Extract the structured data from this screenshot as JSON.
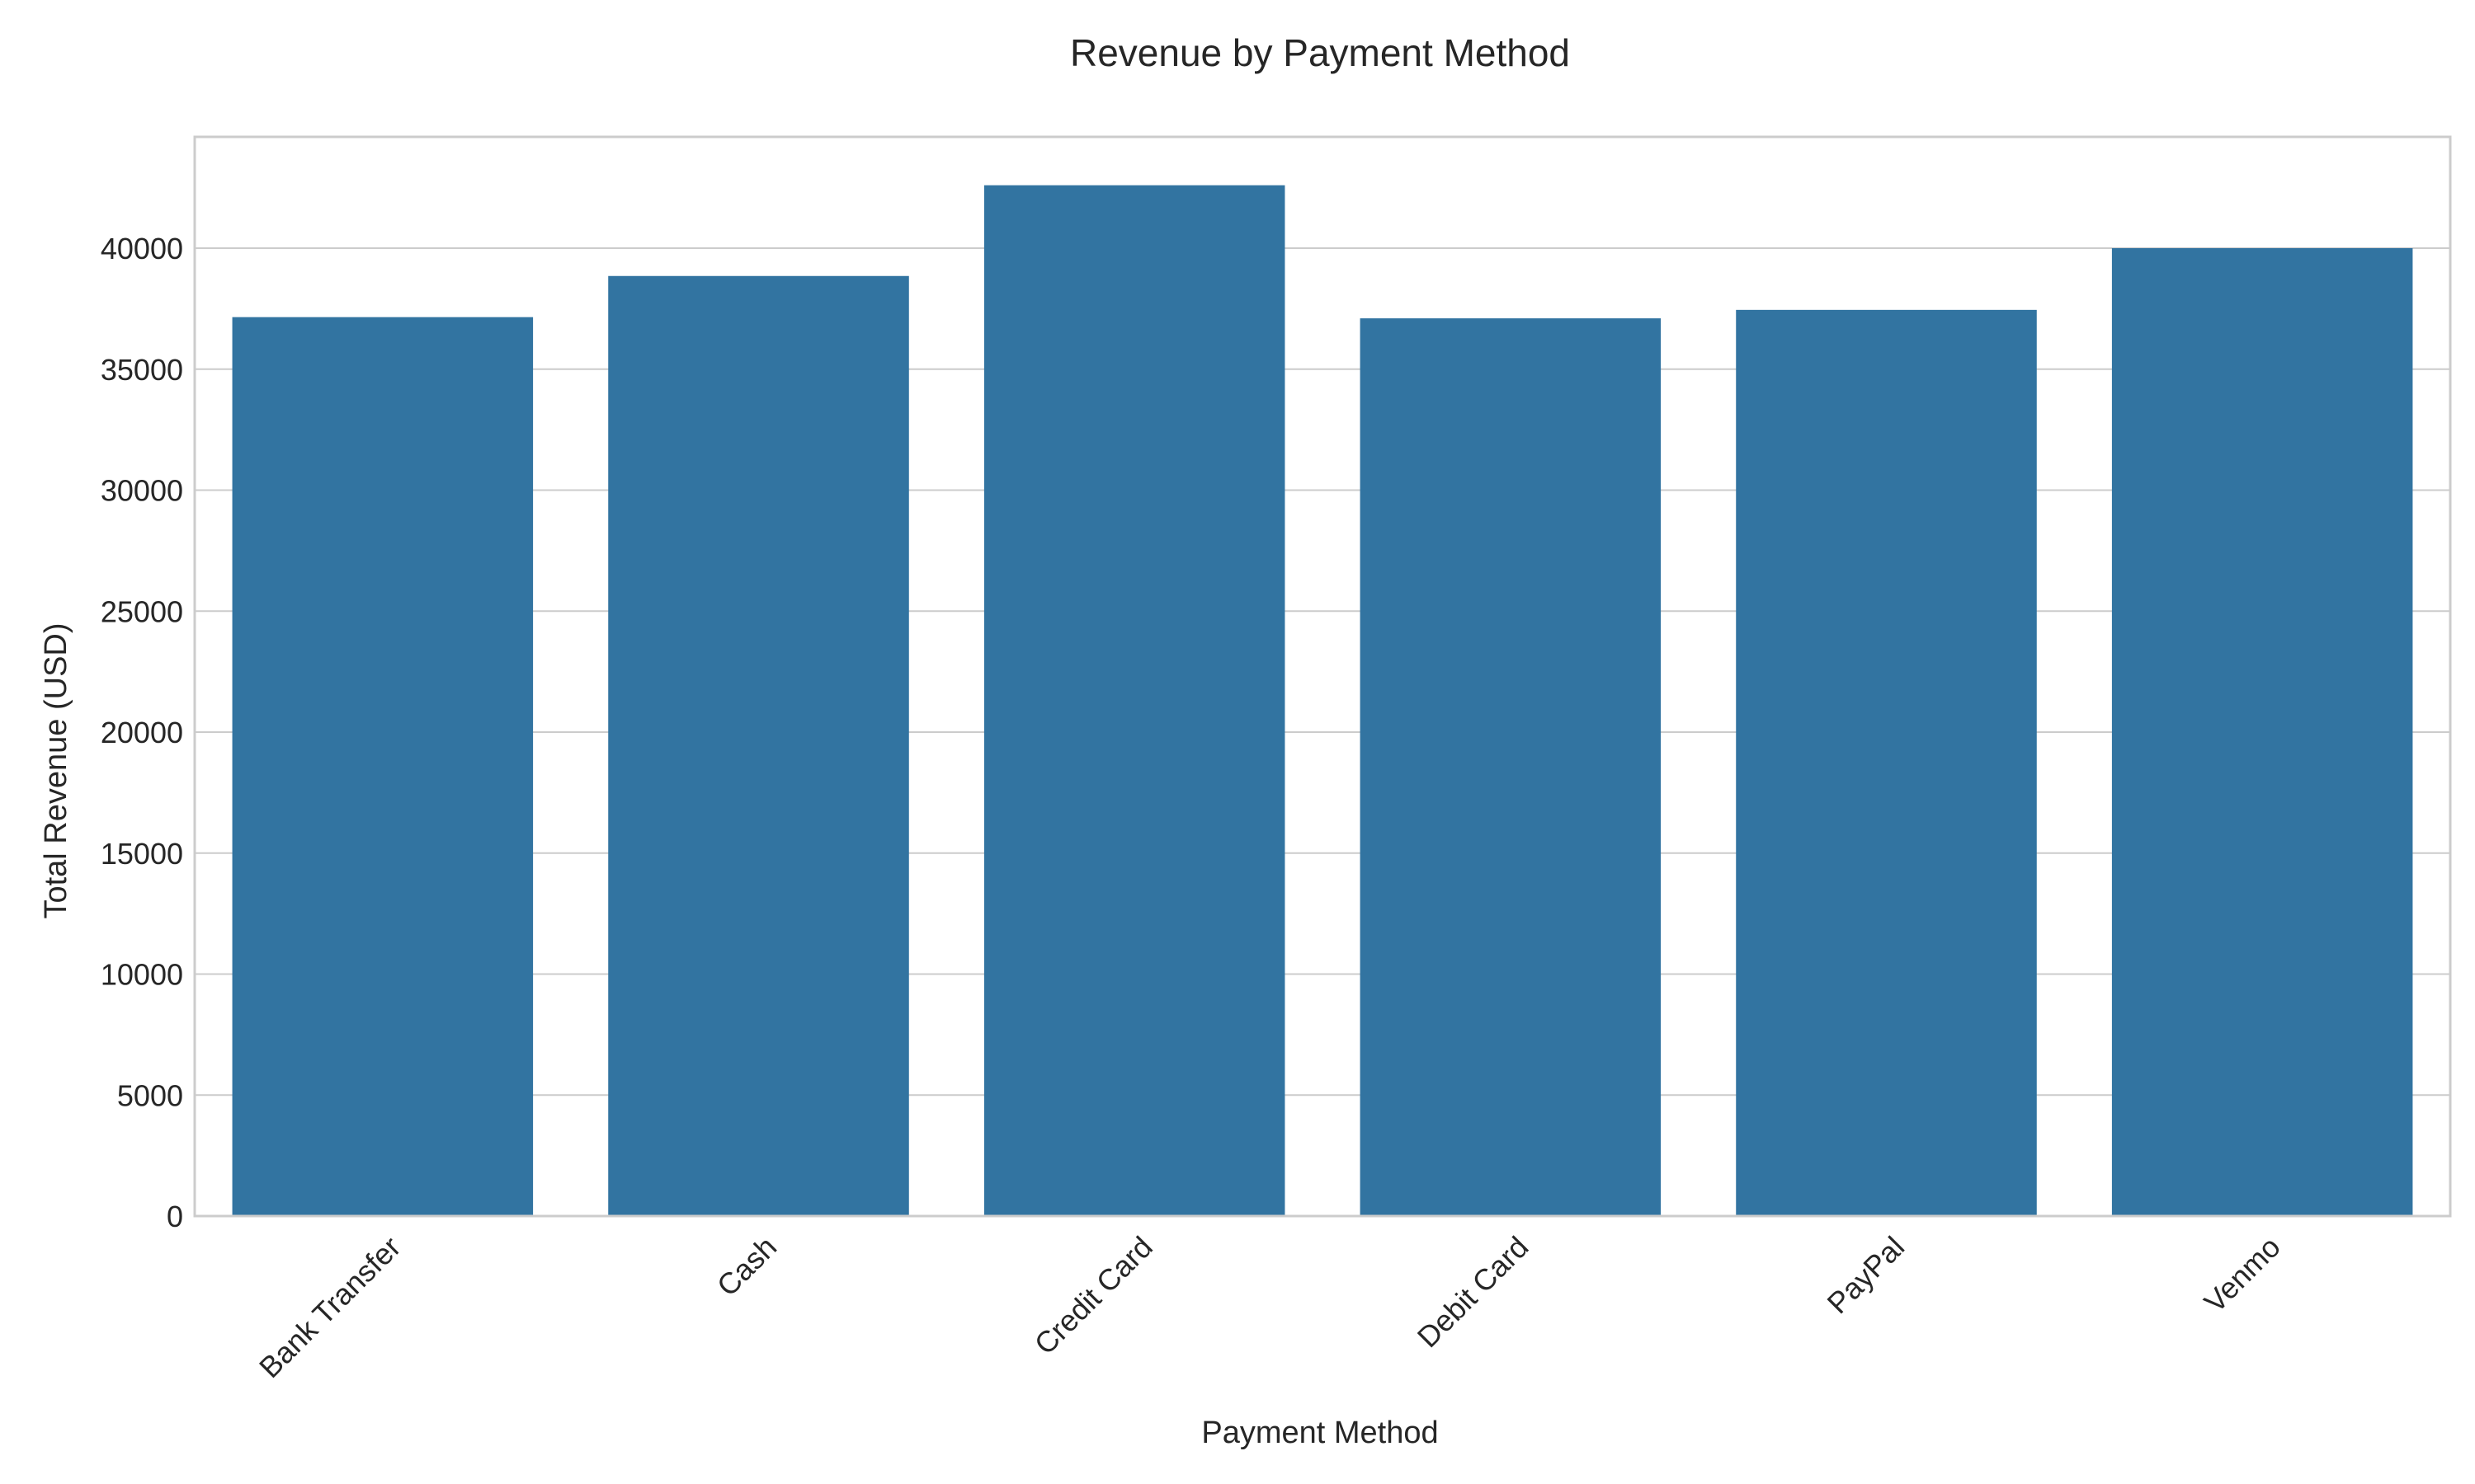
{
  "chart_data": {
    "type": "bar",
    "title": "Revenue by Payment Method",
    "xlabel": "Payment Method",
    "ylabel": "Total Revenue (USD)",
    "categories": [
      "Bank Transfer",
      "Cash",
      "Credit Card",
      "Debit Card",
      "PayPal",
      "Venmo"
    ],
    "values": [
      37150,
      38850,
      42600,
      37100,
      37450,
      40000
    ],
    "ylim": [
      0,
      44600
    ],
    "yticks": [
      0,
      5000,
      10000,
      15000,
      20000,
      25000,
      30000,
      35000,
      40000
    ],
    "grid": "horizontal",
    "bar_color": "#3274a1",
    "grid_color": "#cccccc",
    "frame_color": "#cccccc"
  }
}
